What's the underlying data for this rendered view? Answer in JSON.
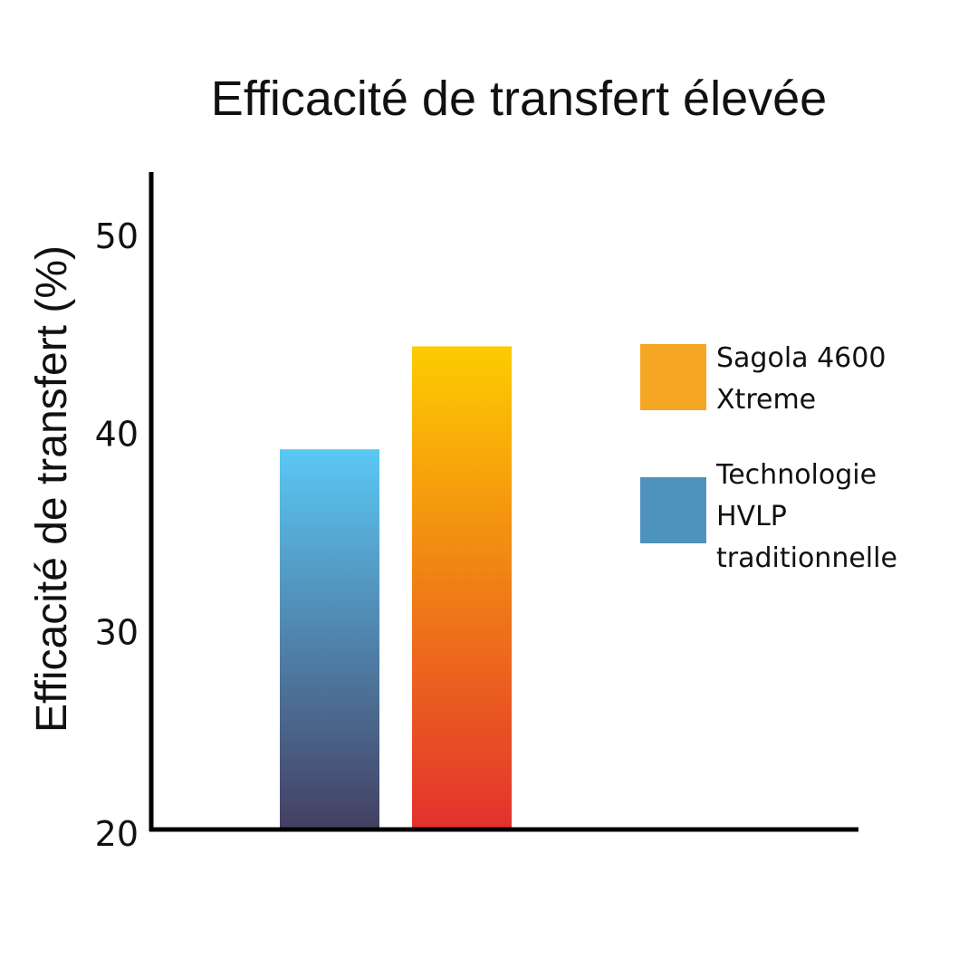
{
  "chart_data": {
    "type": "bar",
    "title": "Efficacité de transfert élevée",
    "ylabel": "Efficacité de transfert (%)",
    "xlabel": "",
    "ylim": [
      20,
      50
    ],
    "yticks": [
      20,
      30,
      40,
      50
    ],
    "categories": [
      "Technologie HVLP traditionnelle",
      "Sagola 4600 Xtreme"
    ],
    "values": [
      39.2,
      44.4
    ],
    "grid": false,
    "legend_position": "right",
    "legend": [
      {
        "label": "Sagola 4600 Xtreme",
        "color": "#F5A623"
      },
      {
        "label": "Technologie HVLP traditionnelle",
        "color": "#4E93BD"
      }
    ],
    "bar_gradients": [
      {
        "top": "#5BC8F5",
        "bottom": "#443F62"
      },
      {
        "top": "#FDCC00",
        "bottom": "#E3312D"
      }
    ]
  }
}
